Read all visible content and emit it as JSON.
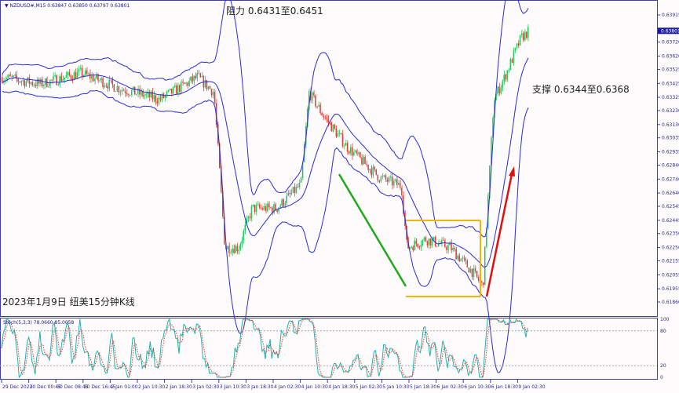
{
  "header": {
    "symbol": "NZDUSD#,M15",
    "ohlc": "0.63847 0.63850 0.63797 0.63801"
  },
  "stoch": {
    "label": "Stoch(5,3,3) 78.0660 85.0058",
    "levels": [
      "100",
      "80",
      "20",
      "0"
    ]
  },
  "annotations": {
    "resistance": "阻力 0.6431至0.6451",
    "support": "支撑 0.6344至0.6368",
    "caption": "2023年1月9日 纽美15分钟K线"
  },
  "colors": {
    "up": "#22c55e",
    "down": "#e53935",
    "band": "#2b2bd8",
    "trend_down": "#1faa1a",
    "range_box": "#f5b400",
    "arrow": "#e01010",
    "axis": "#3b3bc0",
    "current_price_bg": "#1a1aa8"
  },
  "chart_data": {
    "type": "line",
    "title": "",
    "ylim": [
      0.6186,
      0.63915
    ],
    "price_ticks": [
      "0.63915",
      "0.63720",
      "0.63620",
      "0.63525",
      "0.63425",
      "0.63325",
      "0.63230",
      "0.63130",
      "0.63035",
      "0.62935",
      "0.62840",
      "0.62740",
      "0.62640",
      "0.62545",
      "0.62445",
      "0.62350",
      "0.62250",
      "0.62155",
      "0.62055",
      "0.61955",
      "0.61860"
    ],
    "current_price": "0.63801",
    "time_ticks": [
      "29 Dec 2022",
      "30 Dec 00:45",
      "30 Dec 08:45",
      "30 Dec 16:45",
      "2 Jan 01:00",
      "2 Jan 10:30",
      "2 Jan 18:30",
      "3 Jan 02:30",
      "3 Jan 10:30",
      "3 Jan 18:30",
      "4 Jan 02:30",
      "4 Jan 10:30",
      "4 Jan 18:30",
      "5 Jan 02:30",
      "5 Jan 10:30",
      "5 Jan 18:30",
      "6 Jan 02:30",
      "6 Jan 10:30",
      "6 Jan 18:30",
      "9 Jan 02:30"
    ],
    "close_path": [
      [
        0,
        0.6347
      ],
      [
        1.4,
        0.6342
      ],
      [
        2.9,
        0.635
      ],
      [
        4.3,
        0.6339
      ],
      [
        5.8,
        0.6331
      ],
      [
        7.2,
        0.6347
      ],
      [
        7.8,
        0.6336
      ],
      [
        8.2,
        0.6225
      ],
      [
        8.7,
        0.6225
      ],
      [
        9.2,
        0.6253
      ],
      [
        10.1,
        0.6253
      ],
      [
        11,
        0.627
      ],
      [
        11.3,
        0.6336
      ],
      [
        11.8,
        0.632
      ],
      [
        12.7,
        0.6297
      ],
      [
        13.9,
        0.6275
      ],
      [
        14.7,
        0.6269
      ],
      [
        14.9,
        0.6225
      ],
      [
        15.6,
        0.6231
      ],
      [
        16.5,
        0.6225
      ],
      [
        17.3,
        0.6208
      ],
      [
        17.7,
        0.6197
      ],
      [
        18.1,
        0.6331
      ],
      [
        18.5,
        0.6347
      ],
      [
        19.1,
        0.6375
      ],
      [
        19.4,
        0.638
      ]
    ]
  }
}
